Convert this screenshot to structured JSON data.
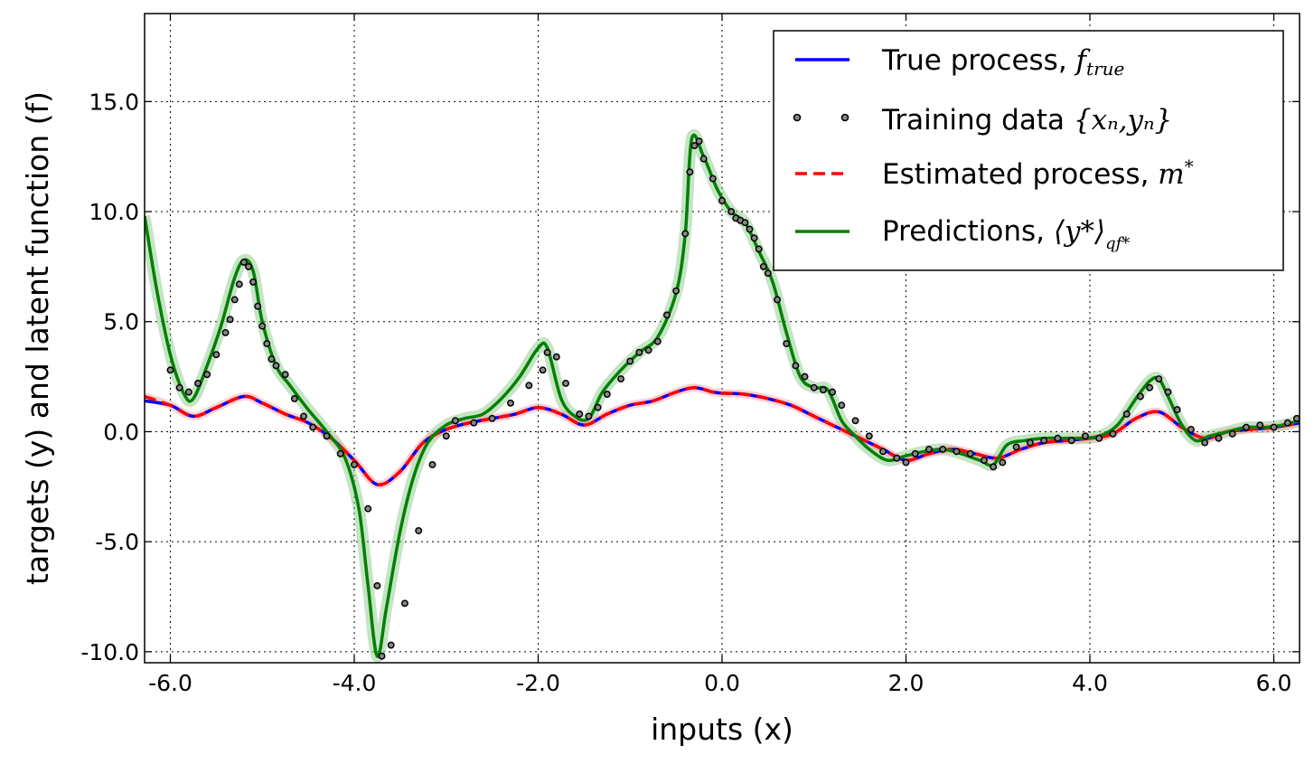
{
  "chart_data": {
    "type": "line",
    "xlabel": "inputs (x)",
    "ylabel": "targets (y) and latent function (f)",
    "xlim": [
      -6.28,
      6.28
    ],
    "ylim": [
      -10.5,
      19.0
    ],
    "grid": true,
    "legend_position": "top-right",
    "x_ticks": [
      "-6.0",
      "-4.0",
      "-2.0",
      "0.0",
      "2.0",
      "4.0",
      "6.0"
    ],
    "x_tick_values": [
      -6,
      -4,
      -2,
      0,
      2,
      4,
      6
    ],
    "y_ticks": [
      "-10.0",
      "-5.0",
      "0.0",
      "5.0",
      "10.0",
      "15.0"
    ],
    "y_tick_values": [
      -10,
      -5,
      0,
      5,
      10,
      15
    ],
    "series": [
      {
        "name": "True process, f_true",
        "legend_text": "True process, ",
        "legend_math": "f",
        "legend_math_sub": "true",
        "color": "#0000ff",
        "style": "solid",
        "x": [
          -6.28,
          -6.0,
          -5.75,
          -5.5,
          -5.2,
          -5.0,
          -4.75,
          -4.5,
          -4.25,
          -4.0,
          -3.75,
          -3.5,
          -3.25,
          -3.0,
          -2.75,
          -2.5,
          -2.25,
          -2.0,
          -1.75,
          -1.5,
          -1.25,
          -1.0,
          -0.75,
          -0.5,
          -0.3,
          -0.1,
          0.0,
          0.25,
          0.5,
          0.75,
          1.0,
          1.25,
          1.5,
          1.75,
          2.0,
          2.25,
          2.5,
          2.75,
          3.0,
          3.25,
          3.5,
          3.75,
          4.0,
          4.25,
          4.5,
          4.75,
          5.0,
          5.25,
          5.5,
          5.75,
          6.0,
          6.28
        ],
        "y": [
          1.4,
          1.2,
          0.7,
          1.1,
          1.6,
          1.3,
          0.8,
          0.4,
          -0.3,
          -1.3,
          -2.4,
          -1.8,
          -0.5,
          0.1,
          0.4,
          0.6,
          0.8,
          1.1,
          0.8,
          0.3,
          0.8,
          1.2,
          1.4,
          1.8,
          2.0,
          1.8,
          1.75,
          1.7,
          1.5,
          1.2,
          0.7,
          0.2,
          -0.3,
          -0.8,
          -1.3,
          -1.0,
          -0.8,
          -1.0,
          -1.2,
          -0.8,
          -0.5,
          -0.4,
          -0.3,
          -0.1,
          0.6,
          0.9,
          0.2,
          -0.3,
          0.0,
          0.1,
          0.2,
          0.4
        ]
      },
      {
        "name": "Estimated process, m*",
        "legend_text": "Estimated process, ",
        "legend_math": "m",
        "legend_math_sup": "*",
        "color": "#ff0000",
        "style": "dashed",
        "x": [
          -6.28,
          -6.0,
          -5.75,
          -5.5,
          -5.2,
          -5.0,
          -4.75,
          -4.5,
          -4.25,
          -4.0,
          -3.75,
          -3.5,
          -3.25,
          -3.0,
          -2.75,
          -2.5,
          -2.25,
          -2.0,
          -1.75,
          -1.5,
          -1.25,
          -1.0,
          -0.75,
          -0.5,
          -0.3,
          -0.1,
          0.0,
          0.25,
          0.5,
          0.75,
          1.0,
          1.25,
          1.5,
          1.75,
          2.0,
          2.25,
          2.5,
          2.75,
          3.0,
          3.25,
          3.5,
          3.75,
          4.0,
          4.25,
          4.5,
          4.75,
          5.0,
          5.25,
          5.5,
          5.75,
          6.0,
          6.28
        ],
        "y": [
          1.6,
          1.2,
          0.7,
          1.1,
          1.6,
          1.3,
          0.8,
          0.4,
          -0.3,
          -1.3,
          -2.4,
          -1.8,
          -0.5,
          0.1,
          0.4,
          0.6,
          0.8,
          1.1,
          0.8,
          0.3,
          0.8,
          1.2,
          1.4,
          1.8,
          2.0,
          1.8,
          1.75,
          1.7,
          1.5,
          1.2,
          0.7,
          0.2,
          -0.3,
          -0.8,
          -1.3,
          -1.0,
          -0.8,
          -1.0,
          -1.2,
          -0.8,
          -0.5,
          -0.4,
          -0.3,
          -0.1,
          0.6,
          0.9,
          0.2,
          -0.3,
          0.0,
          0.1,
          0.2,
          0.4
        ]
      },
      {
        "name": "Predictions, <y*>_qf*",
        "legend_text": "Predictions, ",
        "legend_math": "⟨y*⟩",
        "legend_math_sub": "qf*",
        "color": "#008000",
        "style": "solid",
        "x": [
          -6.28,
          -6.15,
          -6.0,
          -5.85,
          -5.75,
          -5.6,
          -5.45,
          -5.3,
          -5.2,
          -5.1,
          -5.0,
          -4.85,
          -4.7,
          -4.5,
          -4.3,
          -4.1,
          -3.95,
          -3.85,
          -3.75,
          -3.65,
          -3.5,
          -3.35,
          -3.2,
          -3.0,
          -2.8,
          -2.6,
          -2.4,
          -2.2,
          -2.0,
          -1.9,
          -1.75,
          -1.6,
          -1.45,
          -1.3,
          -1.1,
          -0.9,
          -0.7,
          -0.5,
          -0.4,
          -0.33,
          -0.2,
          -0.05,
          0.1,
          0.25,
          0.4,
          0.55,
          0.7,
          0.85,
          1.0,
          1.15,
          1.3,
          1.45,
          1.6,
          1.8,
          2.0,
          2.2,
          2.4,
          2.6,
          2.8,
          2.95,
          3.1,
          3.3,
          3.5,
          3.7,
          3.9,
          4.1,
          4.3,
          4.5,
          4.65,
          4.75,
          4.85,
          5.0,
          5.15,
          5.3,
          5.5,
          5.7,
          5.9,
          6.1,
          6.28
        ],
        "y": [
          9.8,
          6.5,
          3.5,
          1.7,
          1.5,
          3.0,
          4.8,
          7.0,
          7.8,
          7.3,
          5.0,
          3.0,
          2.1,
          1.0,
          0.0,
          -1.2,
          -3.5,
          -7.0,
          -10.2,
          -8.0,
          -4.5,
          -2.0,
          -0.5,
          0.3,
          0.6,
          0.8,
          1.5,
          2.5,
          3.8,
          3.8,
          1.5,
          0.7,
          0.6,
          1.8,
          2.8,
          3.6,
          4.3,
          6.3,
          9.0,
          13.3,
          12.5,
          11.0,
          10.0,
          9.5,
          8.2,
          6.8,
          4.5,
          2.5,
          2.0,
          1.9,
          0.5,
          -0.2,
          -0.8,
          -1.3,
          -1.1,
          -0.9,
          -0.8,
          -1.0,
          -1.3,
          -1.5,
          -0.6,
          -0.4,
          -0.3,
          -0.3,
          -0.3,
          -0.2,
          0.3,
          1.5,
          2.3,
          2.4,
          1.6,
          0.3,
          -0.4,
          -0.2,
          0.0,
          0.2,
          0.2,
          0.3,
          0.5
        ]
      }
    ],
    "training_data": {
      "name": "Training data {x_n, y_n}",
      "legend_text": "Training data ",
      "legend_math": "{xₙ,yₙ}",
      "color": "#000000",
      "x": [
        -6.0,
        -5.9,
        -5.8,
        -5.7,
        -5.6,
        -5.5,
        -5.4,
        -5.35,
        -5.3,
        -5.25,
        -5.2,
        -5.15,
        -5.1,
        -5.05,
        -5.0,
        -4.95,
        -4.9,
        -4.85,
        -4.75,
        -4.65,
        -4.55,
        -4.45,
        -4.3,
        -4.15,
        -4.0,
        -3.85,
        -3.75,
        -3.7,
        -3.6,
        -3.45,
        -3.3,
        -3.15,
        -3.0,
        -2.9,
        -2.7,
        -2.5,
        -2.3,
        -2.1,
        -1.95,
        -1.9,
        -1.8,
        -1.7,
        -1.55,
        -1.45,
        -1.35,
        -1.25,
        -1.1,
        -1.0,
        -0.9,
        -0.8,
        -0.7,
        -0.6,
        -0.5,
        -0.4,
        -0.35,
        -0.3,
        -0.25,
        -0.2,
        -0.1,
        0.0,
        0.1,
        0.15,
        0.2,
        0.25,
        0.3,
        0.35,
        0.4,
        0.45,
        0.5,
        0.6,
        0.7,
        0.8,
        0.9,
        1.0,
        1.1,
        1.2,
        1.3,
        1.45,
        1.6,
        1.75,
        1.9,
        2.0,
        2.1,
        2.25,
        2.4,
        2.55,
        2.7,
        2.85,
        2.95,
        3.05,
        3.2,
        3.35,
        3.5,
        3.65,
        3.8,
        3.95,
        4.1,
        4.25,
        4.4,
        4.55,
        4.65,
        4.75,
        4.85,
        4.95,
        5.1,
        5.25,
        5.4,
        5.55,
        5.7,
        5.85,
        6.0,
        6.15,
        6.25
      ],
      "y": [
        2.8,
        2.0,
        1.8,
        2.2,
        2.6,
        3.5,
        4.5,
        5.1,
        6.0,
        6.7,
        7.7,
        7.5,
        6.8,
        5.7,
        4.8,
        4.0,
        3.3,
        3.0,
        2.6,
        1.5,
        0.7,
        0.2,
        -0.2,
        -1.0,
        -1.5,
        -3.5,
        -7.0,
        -10.2,
        -9.7,
        -7.8,
        -4.5,
        -1.5,
        -0.2,
        0.5,
        0.4,
        0.6,
        1.3,
        2.1,
        2.8,
        3.6,
        3.4,
        2.2,
        0.8,
        0.7,
        1.1,
        1.7,
        2.4,
        3.2,
        3.6,
        3.7,
        4.1,
        5.3,
        6.4,
        9.0,
        11.8,
        13.0,
        13.2,
        12.4,
        11.5,
        10.5,
        10.0,
        9.7,
        9.6,
        9.5,
        9.2,
        8.8,
        8.3,
        7.5,
        7.2,
        6.0,
        4.0,
        3.0,
        2.5,
        2.0,
        1.9,
        1.8,
        1.2,
        0.5,
        -0.2,
        -0.9,
        -1.2,
        -1.4,
        -1.0,
        -0.8,
        -0.8,
        -0.9,
        -1.0,
        -1.3,
        -1.6,
        -1.4,
        -0.7,
        -0.5,
        -0.4,
        -0.3,
        -0.4,
        -0.2,
        -0.3,
        -0.1,
        0.8,
        1.6,
        2.0,
        2.4,
        1.8,
        1.0,
        0.1,
        -0.5,
        -0.3,
        -0.1,
        0.2,
        0.3,
        0.2,
        0.4,
        0.6
      ]
    }
  }
}
